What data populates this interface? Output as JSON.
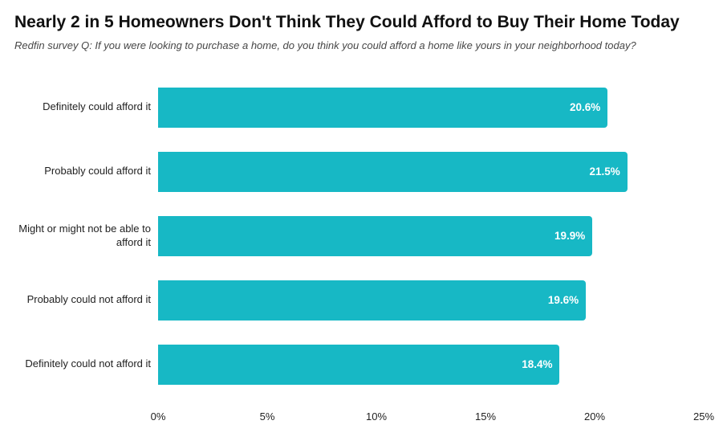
{
  "chart_data": {
    "type": "bar",
    "orientation": "horizontal",
    "title": "Nearly 2 in 5 Homeowners Don't Think They Could Afford to Buy Their Home Today",
    "subtitle": "Redfin survey Q: If you were looking to purchase a home, do you think you could afford a home like yours in your neighborhood today?",
    "categories": [
      "Definitely could afford it",
      "Probably could afford it",
      "Might or might not be able to afford it",
      "Probably could not afford it",
      "Definitely could not afford it"
    ],
    "values": [
      20.6,
      21.5,
      19.9,
      19.6,
      18.4
    ],
    "value_labels": [
      "20.6%",
      "21.5%",
      "19.9%",
      "19.6%",
      "18.4%"
    ],
    "xlabel": "",
    "ylabel": "",
    "xlim": [
      0,
      25
    ],
    "x_ticks": [
      "0%",
      "5%",
      "10%",
      "15%",
      "20%",
      "25%"
    ],
    "x_tick_values": [
      0,
      5,
      10,
      15,
      20,
      25
    ],
    "bar_color": "#17b8c5",
    "value_label_color": "#ffffff",
    "grid": false,
    "legend": false
  }
}
